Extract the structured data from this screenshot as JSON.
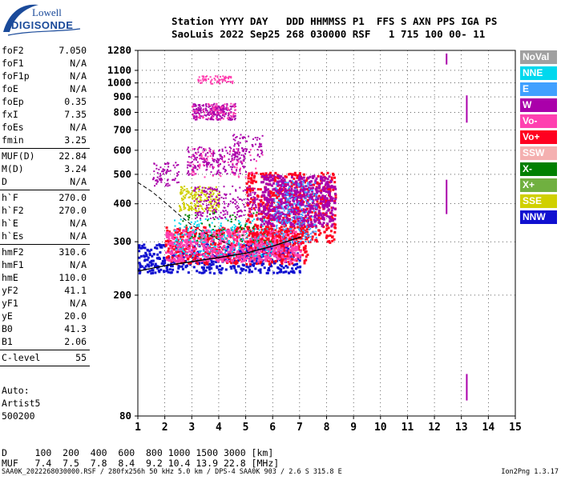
{
  "header": {
    "line1": "Station YYYY DAY   DDD HHMMSS P1  FFS S AXN PPS IGA PS",
    "line2": "SaoLuis 2022 Sep25 268 030000 RSF   1 715 100 00- 11"
  },
  "logo": {
    "top": "Lowell",
    "bottom": "DIGISONDE"
  },
  "params": [
    {
      "name": "foF2",
      "value": "7.050"
    },
    {
      "name": "foF1",
      "value": "N/A"
    },
    {
      "name": "foF1p",
      "value": "N/A"
    },
    {
      "name": "foE",
      "value": "N/A"
    },
    {
      "name": "foEp",
      "value": "0.35"
    },
    {
      "name": "fxI",
      "value": "7.35"
    },
    {
      "name": "foEs",
      "value": "N/A"
    },
    {
      "name": "fmin",
      "value": "3.25"
    },
    {
      "name": "MUF(D)",
      "value": "22.84"
    },
    {
      "name": "M(D)",
      "value": "3.24"
    },
    {
      "name": "D",
      "value": "N/A"
    },
    {
      "name": "h`F",
      "value": "270.0"
    },
    {
      "name": "h`F2",
      "value": "270.0"
    },
    {
      "name": "h`E",
      "value": "N/A"
    },
    {
      "name": "h`Es",
      "value": "N/A"
    },
    {
      "name": "hmF2",
      "value": "310.6"
    },
    {
      "name": "hmF1",
      "value": "N/A"
    },
    {
      "name": "hmE",
      "value": "110.0"
    },
    {
      "name": "yF2",
      "value": "41.1"
    },
    {
      "name": "yF1",
      "value": "N/A"
    },
    {
      "name": "yE",
      "value": "20.0"
    },
    {
      "name": "B0",
      "value": "41.3"
    },
    {
      "name": "B1",
      "value": "2.06"
    },
    {
      "name": "C-level",
      "value": "55"
    }
  ],
  "auto": {
    "line1": "Auto:",
    "line2": "Artist5",
    "line3": "500200"
  },
  "legend": [
    {
      "label": "NoVal",
      "color": "#a0a0a0"
    },
    {
      "label": "NNE",
      "color": "#00d8ee"
    },
    {
      "label": "E",
      "color": "#40a0ff"
    },
    {
      "label": "W",
      "color": "#aa00aa"
    },
    {
      "label": "Vo-",
      "color": "#ff40b0"
    },
    {
      "label": "Vo+",
      "color": "#ff0020"
    },
    {
      "label": "SSW",
      "color": "#f4b0b0"
    },
    {
      "label": "X-",
      "color": "#008000"
    },
    {
      "label": "X+",
      "color": "#70b040"
    },
    {
      "label": "SSE",
      "color": "#d0d000"
    },
    {
      "label": "NNW",
      "color": "#1010d0"
    }
  ],
  "muf_table": {
    "d_row": "D     100  200  400  600  800 1000 1500 3000 [km]",
    "muf_row": "MUF   7.4  7.5  7.8  8.4  9.2 10.4 13.9 22.8 [MHz]"
  },
  "footer": {
    "file": "SAA0K_2022268030000.RSF / 280fx256h 50 kHz 5.0 km / DPS-4 SAA0K 903 / 2.6 S 315.8 E",
    "version": "Ion2Png 1.3.17"
  },
  "chart_data": {
    "type": "scatter",
    "title": "",
    "xlabel": "",
    "ylabel": "",
    "x_range": [
      1,
      15
    ],
    "y_range": [
      80,
      1280
    ],
    "y_scale": "log",
    "grid": true,
    "x_ticks": [
      "1",
      "2",
      "3",
      "4",
      "5",
      "6",
      "7",
      "8",
      "9",
      "10",
      "11",
      "12",
      "13",
      "14",
      "15"
    ],
    "y_ticks": [
      {
        "v": 80,
        "label": "80"
      },
      {
        "v": 200,
        "label": "200"
      },
      {
        "v": 300,
        "label": "300"
      },
      {
        "v": 400,
        "label": "400"
      },
      {
        "v": 500,
        "label": "500"
      },
      {
        "v": 600,
        "label": "600"
      },
      {
        "v": 700,
        "label": "700"
      },
      {
        "v": 800,
        "label": "800"
      },
      {
        "v": 900,
        "label": "900"
      },
      {
        "v": 1000,
        "label": "1000"
      },
      {
        "v": 1100,
        "label": "1100"
      },
      {
        "v": 1280,
        "label": "1280"
      }
    ],
    "y_grid": [
      200,
      300,
      400,
      500,
      600,
      700,
      800,
      900,
      1000,
      1100
    ],
    "profile": [
      [
        1.0,
        240
      ],
      [
        1.5,
        245
      ],
      [
        2,
        250
      ],
      [
        3,
        258
      ],
      [
        4,
        266
      ],
      [
        5,
        275
      ],
      [
        6,
        290
      ],
      [
        7,
        310
      ],
      [
        7.05,
        311
      ]
    ],
    "dashed_topside": [
      [
        1.0,
        470
      ],
      [
        1.5,
        440
      ],
      [
        2,
        405
      ],
      [
        2.5,
        370
      ],
      [
        3,
        340
      ],
      [
        3.5,
        320
      ],
      [
        4,
        305
      ],
      [
        4.5,
        290
      ]
    ],
    "trace_clusters": [
      {
        "x0": 1.0,
        "x1": 7.0,
        "y0": 238,
        "y1": 300,
        "density": "high",
        "color": "#1010d0"
      },
      {
        "x0": 2.0,
        "x1": 7.3,
        "y0": 255,
        "y1": 340,
        "density": "high",
        "color": "#ff0020"
      },
      {
        "x0": 2.0,
        "x1": 7.0,
        "y0": 260,
        "y1": 330,
        "density": "high",
        "color": "#ff40b0"
      },
      {
        "x0": 2.3,
        "x1": 6.0,
        "y0": 270,
        "y1": 360,
        "density": "medium",
        "color": "#00d8ee"
      },
      {
        "x0": 2.5,
        "x1": 6.0,
        "y0": 300,
        "y1": 380,
        "density": "low",
        "color": "#008000"
      },
      {
        "x0": 5.0,
        "x1": 8.3,
        "y0": 300,
        "y1": 510,
        "density": "high",
        "color": "#ff0020"
      },
      {
        "x0": 5.5,
        "x1": 8.3,
        "y0": 340,
        "y1": 500,
        "density": "high",
        "color": "#aa00aa"
      },
      {
        "x0": 6.0,
        "x1": 7.6,
        "y0": 300,
        "y1": 480,
        "density": "medium",
        "color": "#40a0ff"
      },
      {
        "x0": 2.8,
        "x1": 5.0,
        "y0": 500,
        "y1": 620,
        "density": "medium",
        "color": "#aa00aa"
      },
      {
        "x0": 2.8,
        "x1": 5.6,
        "y0": 490,
        "y1": 610,
        "density": "low",
        "color": "#ff40b0"
      },
      {
        "x0": 4.5,
        "x1": 5.6,
        "y0": 560,
        "y1": 680,
        "density": "low",
        "color": "#aa00aa"
      },
      {
        "x0": 3.0,
        "x1": 4.6,
        "y0": 760,
        "y1": 860,
        "density": "medium",
        "color": "#aa00aa"
      },
      {
        "x0": 3.0,
        "x1": 4.6,
        "y0": 760,
        "y1": 860,
        "density": "low",
        "color": "#ff40b0"
      },
      {
        "x0": 3.2,
        "x1": 4.5,
        "y0": 1000,
        "y1": 1060,
        "density": "low",
        "color": "#ff40b0"
      },
      {
        "x0": 1.5,
        "x1": 2.5,
        "y0": 460,
        "y1": 550,
        "density": "low",
        "color": "#aa00aa"
      },
      {
        "x0": 2.5,
        "x1": 4.0,
        "y0": 380,
        "y1": 460,
        "density": "medium",
        "color": "#d0d000"
      },
      {
        "x0": 3.0,
        "x1": 5.5,
        "y0": 360,
        "y1": 460,
        "density": "medium",
        "color": "#aa00aa"
      }
    ],
    "vertical_markers": [
      {
        "x": 12.45,
        "y0": 1150,
        "y1": 1250,
        "color": "#aa00aa"
      },
      {
        "x": 13.2,
        "y0": 740,
        "y1": 910,
        "color": "#aa00aa"
      },
      {
        "x": 12.45,
        "y0": 370,
        "y1": 480,
        "color": "#aa00aa"
      },
      {
        "x": 13.2,
        "y0": 90,
        "y1": 110,
        "color": "#aa00aa"
      }
    ]
  }
}
